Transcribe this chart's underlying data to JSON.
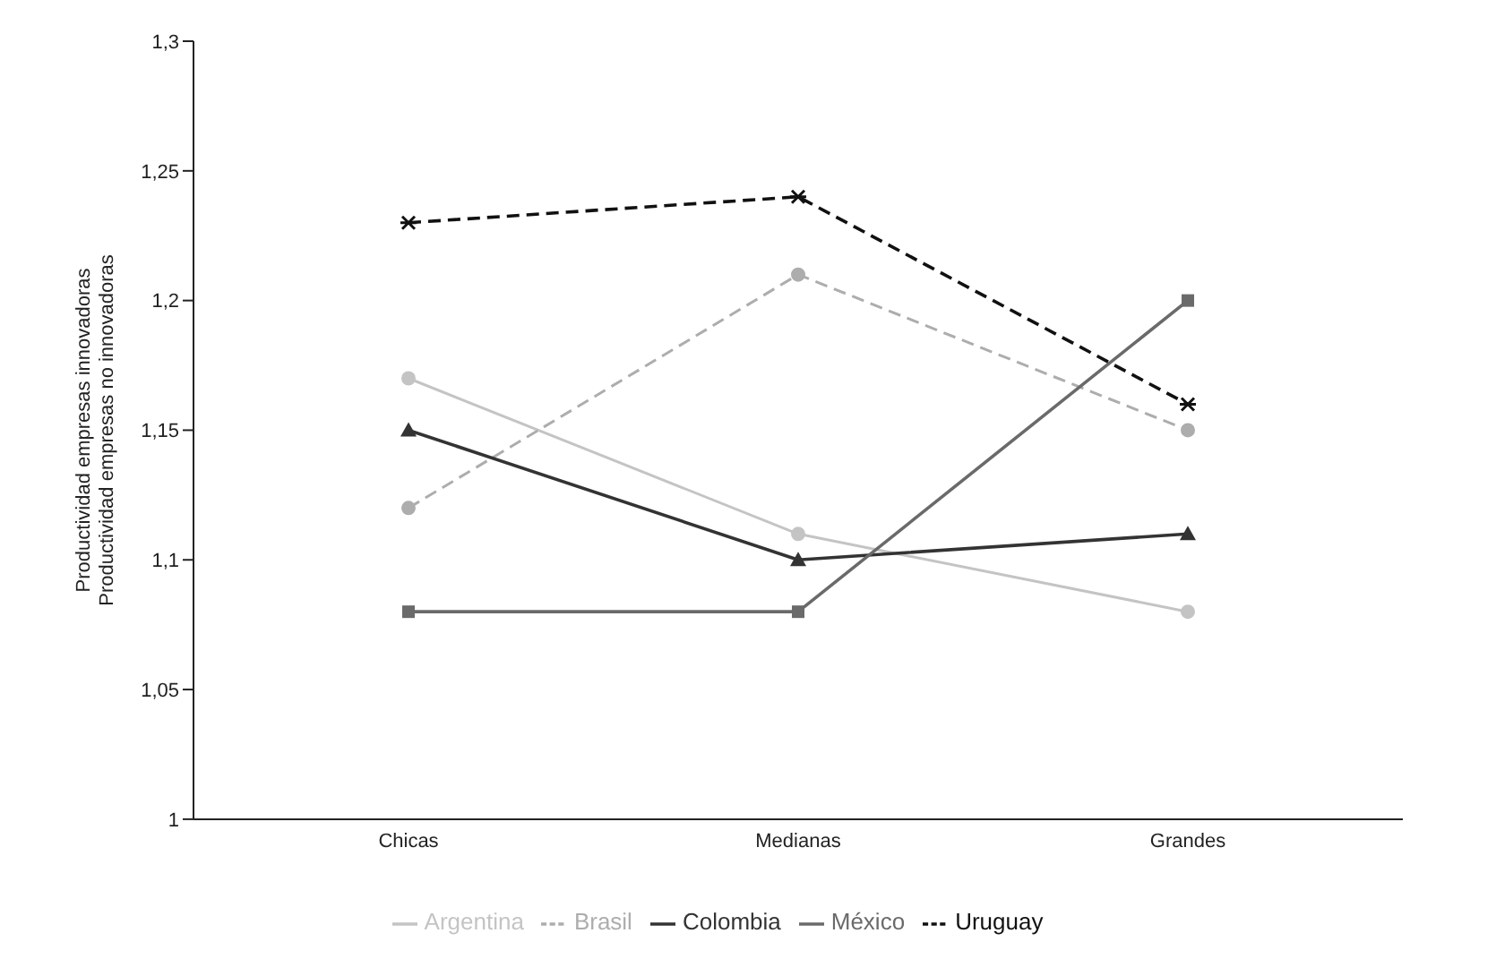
{
  "chart_data": {
    "type": "line",
    "ylabel": "Productividad empresas innovadoras\nProductividad empresas no innovadoras",
    "categories": [
      "Chicas",
      "Medianas",
      "Grandes"
    ],
    "ylim": [
      1,
      1.3
    ],
    "yticks": [
      1,
      {
        "value": 1.05,
        "label": "1,05"
      },
      {
        "value": 1.1,
        "label": "1,1"
      },
      {
        "value": 1.15,
        "label": "1,15"
      },
      {
        "value": 1.2,
        "label": "1,2"
      },
      {
        "value": 1.25,
        "label": "1,25"
      },
      {
        "value": 1.3,
        "label": "1,3"
      }
    ],
    "grid": false,
    "legend": "bottom",
    "series": [
      {
        "name": "Argentina",
        "color": "#c4c4c4",
        "values": [
          1.17,
          1.11,
          1.08
        ],
        "marker": "circle",
        "line_style": "solid"
      },
      {
        "name": "Brasil",
        "color": "#adadad",
        "values": [
          1.12,
          1.21,
          1.15
        ],
        "marker": "circle",
        "line_style": "dashed"
      },
      {
        "name": "Colombia",
        "color": "#333333",
        "values": [
          1.15,
          1.1,
          1.11
        ],
        "marker": "triangle",
        "line_style": "solid"
      },
      {
        "name": "México",
        "color": "#6a6a6a",
        "values": [
          1.08,
          1.08,
          1.2
        ],
        "marker": "square",
        "line_style": "solid"
      },
      {
        "name": "Uruguay",
        "color": "#111111",
        "values": [
          1.23,
          1.24,
          1.16
        ],
        "marker": "cross",
        "line_style": "dashed"
      }
    ]
  }
}
